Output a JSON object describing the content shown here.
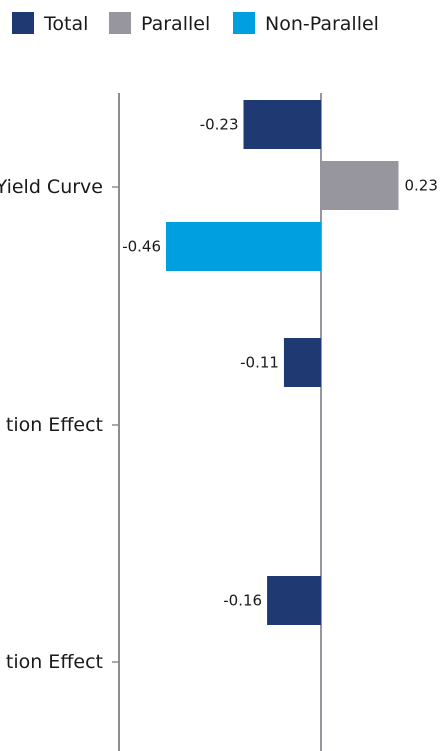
{
  "chart_data": {
    "type": "bar",
    "orientation": "horizontal",
    "title": "",
    "xlabel": "",
    "ylabel": "",
    "categories": [
      "Yield Curve",
      "tion Effect",
      "tion Effect"
    ],
    "series": [
      {
        "name": "Total",
        "color": "#1f3a73",
        "values": [
          -0.23,
          -0.11,
          -0.16
        ]
      },
      {
        "name": "Parallel",
        "color": "#97969e",
        "values": [
          0.23,
          null,
          null
        ]
      },
      {
        "name": "Non-Parallel",
        "color": "#009fe0",
        "values": [
          -0.46,
          null,
          null
        ]
      }
    ],
    "data_labels": [
      [
        "-0.23",
        "-0.11",
        "-0.16"
      ],
      [
        "0.23",
        "",
        ""
      ],
      [
        "-0.46",
        "",
        ""
      ]
    ],
    "xlim": [
      -0.6,
      0.35
    ],
    "legend_position": "top-left",
    "grid": false
  },
  "colors": {
    "axis": "#8c8c94",
    "zero_line": "#97969e"
  }
}
